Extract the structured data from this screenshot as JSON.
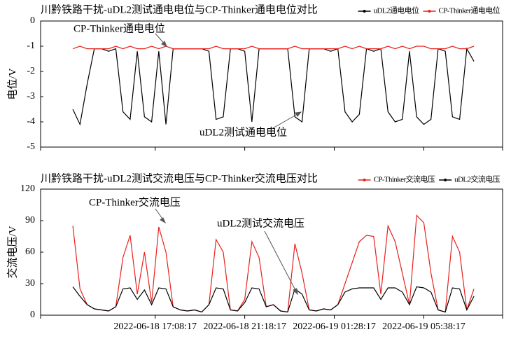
{
  "chart_data": [
    {
      "type": "line",
      "title": "川黔铁路干扰-uDL2测试通电电位与CP-Thinker通电电位对比",
      "ylabel": "电位/V",
      "x": [
        "2022-06-18 13:18:17",
        "2022-06-18 13:38:17",
        "2022-06-18 13:58:17",
        "2022-06-18 14:18:17",
        "2022-06-18 14:38:17",
        "2022-06-18 14:58:17",
        "2022-06-18 15:18:17",
        "2022-06-18 15:38:17",
        "2022-06-18 15:58:17",
        "2022-06-18 16:18:17",
        "2022-06-18 16:38:17",
        "2022-06-18 16:58:17",
        "2022-06-18 17:18:17",
        "2022-06-18 17:38:17",
        "2022-06-18 17:58:17",
        "2022-06-18 18:18:17",
        "2022-06-18 18:38:17",
        "2022-06-18 18:58:17",
        "2022-06-18 19:18:17",
        "2022-06-18 19:38:17",
        "2022-06-18 19:58:17",
        "2022-06-18 20:18:17",
        "2022-06-18 20:38:17",
        "2022-06-18 20:58:17",
        "2022-06-18 21:18:17",
        "2022-06-18 21:38:17",
        "2022-06-18 21:58:17",
        "2022-06-18 22:18:17",
        "2022-06-18 22:38:17",
        "2022-06-18 22:58:17",
        "2022-06-18 23:18:17",
        "2022-06-18 23:38:17",
        "2022-06-18 23:58:17",
        "2022-06-19 00:18:17",
        "2022-06-19 00:38:17",
        "2022-06-19 00:58:17",
        "2022-06-19 01:18:17",
        "2022-06-19 01:38:17",
        "2022-06-19 01:58:17",
        "2022-06-19 02:18:17",
        "2022-06-19 02:38:17",
        "2022-06-19 02:58:17",
        "2022-06-19 03:18:17",
        "2022-06-19 03:38:17",
        "2022-06-19 03:58:17",
        "2022-06-19 04:18:17",
        "2022-06-19 04:38:17",
        "2022-06-19 04:58:17",
        "2022-06-19 05:18:17",
        "2022-06-19 05:38:17",
        "2022-06-19 05:58:17",
        "2022-06-19 06:18:17",
        "2022-06-19 06:38:17",
        "2022-06-19 06:58:17",
        "2022-06-19 07:18:17",
        "2022-06-19 07:38:17",
        "2022-06-19 07:58:17"
      ],
      "series": [
        {
          "name": "uDL2通电电位",
          "color": "#000000",
          "values": [
            -3.5,
            -4.1,
            -2.5,
            -1.1,
            -1.1,
            -1.2,
            -1.1,
            -3.6,
            -3.9,
            -1.2,
            -3.8,
            -4.0,
            -1.2,
            -4.1,
            -1.1,
            -1.1,
            -1.1,
            -1.1,
            -1.1,
            -1.2,
            -3.9,
            -3.8,
            -1.1,
            -1.1,
            -1.2,
            -4.0,
            -1.1,
            -1.1,
            -1.1,
            -1.1,
            -1.1,
            -3.8,
            -4.0,
            -1.1,
            -1.1,
            -1.1,
            -1.2,
            -1.1,
            -3.6,
            -4.0,
            -3.7,
            -1.1,
            -1.2,
            -1.1,
            -3.6,
            -4.0,
            -3.9,
            -1.2,
            -3.8,
            -4.1,
            -3.9,
            -1.1,
            -1.2,
            -3.8,
            -3.9,
            -1.1,
            -1.6
          ]
        },
        {
          "name": "CP-Thinker通电电位",
          "color": "#e8201c",
          "values": [
            -1.1,
            -1.0,
            -1.1,
            -1.1,
            -1.1,
            -1.1,
            -1.0,
            -1.1,
            -1.0,
            -1.1,
            -1.1,
            -1.0,
            -1.1,
            -1.0,
            -1.1,
            -1.1,
            -1.1,
            -1.1,
            -1.1,
            -1.1,
            -1.0,
            -1.1,
            -1.1,
            -1.1,
            -1.1,
            -1.0,
            -1.1,
            -1.1,
            -1.1,
            -1.1,
            -1.1,
            -1.0,
            -1.1,
            -1.1,
            -1.1,
            -1.1,
            -1.1,
            -1.1,
            -1.0,
            -1.1,
            -1.0,
            -1.1,
            -1.1,
            -1.1,
            -1.0,
            -1.1,
            -1.0,
            -1.1,
            -1.0,
            -1.0,
            -1.1,
            -1.1,
            -1.1,
            -1.0,
            -1.1,
            -1.1,
            -1.0
          ]
        }
      ],
      "xlim": [
        "2022-06-18 11:48:17",
        "2022-06-19 09:18:17"
      ],
      "xticks": [
        "2022-06-18 17:08:17",
        "2022-06-18 21:18:17",
        "2022-06-19 01:28:17",
        "2022-06-19 05:38:17"
      ],
      "ylim": [
        -5,
        0
      ],
      "yticks": [
        0,
        -1,
        -2,
        -3,
        -4,
        -5
      ],
      "grid": false,
      "legend": "top-right",
      "annotations": [
        "CP-Thinker通电电位",
        "uDL2测试通电电位"
      ]
    },
    {
      "type": "line",
      "title": "川黔铁路干扰-uDL2测试交流电压与CP-Thinker交流电压对比",
      "ylabel": "交流电压/V",
      "x": [
        "2022-06-18 13:18:17",
        "2022-06-18 13:38:17",
        "2022-06-18 13:58:17",
        "2022-06-18 14:18:17",
        "2022-06-18 14:38:17",
        "2022-06-18 14:58:17",
        "2022-06-18 15:18:17",
        "2022-06-18 15:38:17",
        "2022-06-18 15:58:17",
        "2022-06-18 16:18:17",
        "2022-06-18 16:38:17",
        "2022-06-18 16:58:17",
        "2022-06-18 17:18:17",
        "2022-06-18 17:38:17",
        "2022-06-18 17:58:17",
        "2022-06-18 18:18:17",
        "2022-06-18 18:38:17",
        "2022-06-18 18:58:17",
        "2022-06-18 19:18:17",
        "2022-06-18 19:38:17",
        "2022-06-18 19:58:17",
        "2022-06-18 20:18:17",
        "2022-06-18 20:38:17",
        "2022-06-18 20:58:17",
        "2022-06-18 21:18:17",
        "2022-06-18 21:38:17",
        "2022-06-18 21:58:17",
        "2022-06-18 22:18:17",
        "2022-06-18 22:38:17",
        "2022-06-18 22:58:17",
        "2022-06-18 23:18:17",
        "2022-06-18 23:38:17",
        "2022-06-18 23:58:17",
        "2022-06-19 00:18:17",
        "2022-06-19 00:38:17",
        "2022-06-19 00:58:17",
        "2022-06-19 01:18:17",
        "2022-06-19 01:38:17",
        "2022-06-19 01:58:17",
        "2022-06-19 02:18:17",
        "2022-06-19 02:38:17",
        "2022-06-19 02:58:17",
        "2022-06-19 03:18:17",
        "2022-06-19 03:38:17",
        "2022-06-19 03:58:17",
        "2022-06-19 04:18:17",
        "2022-06-19 04:38:17",
        "2022-06-19 04:58:17",
        "2022-06-19 05:18:17",
        "2022-06-19 05:38:17",
        "2022-06-19 05:58:17",
        "2022-06-19 06:18:17",
        "2022-06-19 06:38:17",
        "2022-06-19 06:58:17",
        "2022-06-19 07:18:17",
        "2022-06-19 07:38:17",
        "2022-06-19 07:58:17"
      ],
      "series": [
        {
          "name": "CP-Thinker交流电压",
          "color": "#e8201c",
          "values": [
            85,
            25,
            10,
            6,
            5,
            4,
            8,
            55,
            76,
            20,
            60,
            12,
            84,
            60,
            8,
            5,
            4,
            5,
            3,
            10,
            72,
            60,
            5,
            4,
            15,
            70,
            55,
            8,
            10,
            4,
            3,
            68,
            40,
            5,
            4,
            6,
            5,
            10,
            30,
            50,
            70,
            76,
            75,
            20,
            85,
            70,
            40,
            10,
            95,
            88,
            40,
            5,
            3,
            75,
            60,
            5,
            25
          ]
        },
        {
          "name": "uDL2交流电压",
          "color": "#000000",
          "values": [
            27,
            18,
            10,
            6,
            5,
            4,
            8,
            25,
            26,
            15,
            24,
            10,
            26,
            25,
            8,
            5,
            4,
            5,
            3,
            10,
            26,
            25,
            5,
            4,
            12,
            26,
            25,
            8,
            10,
            4,
            3,
            25,
            20,
            5,
            4,
            6,
            5,
            10,
            22,
            25,
            26,
            26,
            26,
            15,
            26,
            26,
            22,
            10,
            27,
            26,
            22,
            5,
            3,
            26,
            25,
            5,
            18
          ]
        }
      ],
      "xlim": [
        "2022-06-18 11:48:17",
        "2022-06-19 09:18:17"
      ],
      "xticks": [
        "2022-06-18 17:08:17",
        "2022-06-18 21:18:17",
        "2022-06-19 01:28:17",
        "2022-06-19 05:38:17"
      ],
      "ylim": [
        0,
        120
      ],
      "yticks": [
        0,
        30,
        60,
        90,
        120
      ],
      "grid": false,
      "legend": "top-right",
      "annotations": [
        "CP-Thinker交流电压",
        "uDL2测试交流电压"
      ]
    }
  ]
}
